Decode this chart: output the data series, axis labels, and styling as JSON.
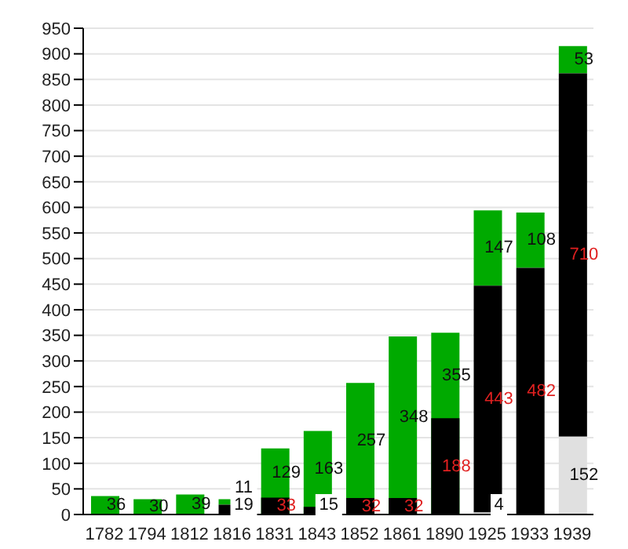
{
  "chart_data": {
    "type": "bar",
    "categories": [
      "1782",
      "1794",
      "1812",
      "1816",
      "1831",
      "1843",
      "1852",
      "1861",
      "1890",
      "1925",
      "1933",
      "1939"
    ],
    "series": [
      {
        "color": "#00aa00",
        "values": [
          36,
          30,
          39,
          11,
          129,
          163,
          257,
          348,
          355,
          147,
          108,
          53
        ],
        "base": [
          0,
          0,
          0,
          19,
          0,
          0,
          0,
          0,
          0,
          447,
          482,
          862
        ]
      },
      {
        "color": "#000000",
        "values": [
          null,
          null,
          null,
          19,
          33,
          15,
          32,
          32,
          188,
          443,
          482,
          710
        ],
        "base": [
          null,
          null,
          null,
          0,
          0,
          0,
          0,
          0,
          0,
          4,
          0,
          152
        ]
      },
      {
        "color": "#e0e0e0",
        "values": [
          null,
          null,
          null,
          null,
          null,
          null,
          null,
          null,
          null,
          4,
          null,
          152
        ],
        "base": [
          null,
          null,
          null,
          null,
          null,
          null,
          null,
          null,
          null,
          0,
          null,
          0
        ]
      }
    ],
    "data_labels": true,
    "ylim": [
      0,
      950
    ],
    "yticks": [
      0,
      50,
      100,
      150,
      200,
      250,
      300,
      350,
      400,
      450,
      500,
      550,
      600,
      650,
      700,
      750,
      800,
      850,
      900,
      950
    ],
    "grid": "y"
  }
}
